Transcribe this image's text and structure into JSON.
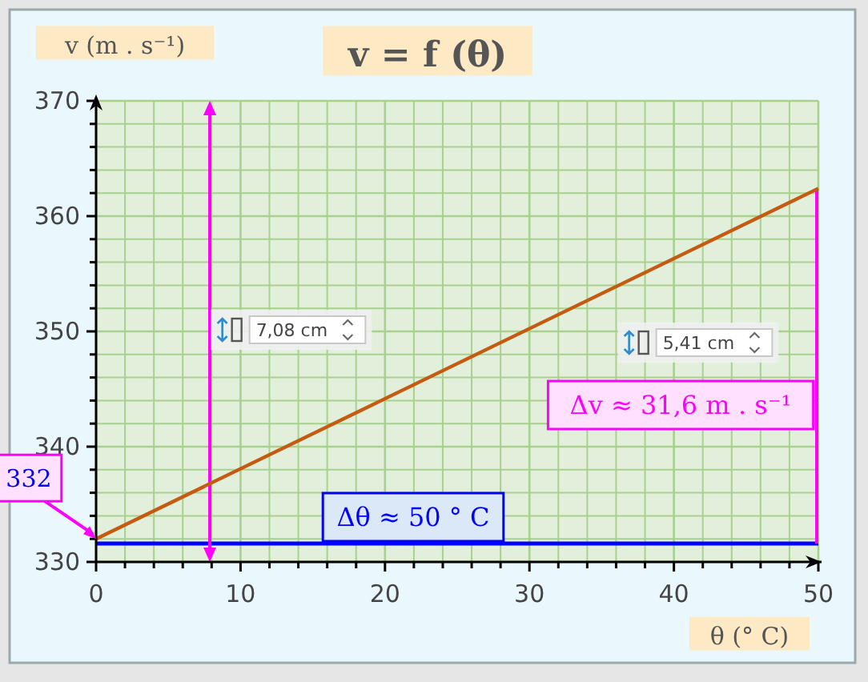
{
  "chart_data": {
    "type": "line",
    "title": "v = f (θ)",
    "xlabel": "θ (° C)",
    "ylabel": "v (m . s⁻¹)",
    "xlim": [
      0,
      50
    ],
    "ylim": [
      330,
      370
    ],
    "xticks": [
      0,
      {
        "value": 2,
        "label": null
      },
      {
        "value": 4,
        "label": null
      },
      {
        "value": 6,
        "label": null
      },
      {
        "value": 8,
        "label": null
      },
      10,
      {
        "value": 12,
        "label": null
      },
      {
        "value": 14,
        "label": null
      },
      {
        "value": 16,
        "label": null
      },
      {
        "value": 18,
        "label": null
      },
      20,
      {
        "value": 22,
        "label": null
      },
      {
        "value": 24,
        "label": null
      },
      {
        "value": 26,
        "label": null
      },
      {
        "value": 28,
        "label": null
      },
      30,
      {
        "value": 32,
        "label": null
      },
      {
        "value": 34,
        "label": null
      },
      {
        "value": 36,
        "label": null
      },
      {
        "value": 38,
        "label": null
      },
      40,
      {
        "value": 42,
        "label": null
      },
      {
        "value": 44,
        "label": null
      },
      {
        "value": 46,
        "label": null
      },
      {
        "value": 48,
        "label": null
      },
      50
    ],
    "yticks": [
      330,
      {
        "value": 332,
        "label": null
      },
      {
        "value": 334,
        "label": null
      },
      {
        "value": 336,
        "label": null
      },
      {
        "value": 338,
        "label": null
      },
      340,
      {
        "value": 342,
        "label": null
      },
      {
        "value": 344,
        "label": null
      },
      {
        "value": 346,
        "label": null
      },
      {
        "value": 348,
        "label": null
      },
      350,
      {
        "value": 352,
        "label": null
      },
      {
        "value": 354,
        "label": null
      },
      {
        "value": 356,
        "label": null
      },
      {
        "value": 358,
        "label": null
      },
      360,
      {
        "value": 362,
        "label": null
      },
      {
        "value": 364,
        "label": null
      },
      {
        "value": 366,
        "label": null
      },
      {
        "value": 368,
        "label": null
      },
      370
    ],
    "grid": true,
    "series": [
      {
        "color": "#c55a11",
        "x": [
          0,
          50
        ],
        "values": [
          332,
          362.4
        ]
      }
    ],
    "ref_lines": [
      {
        "axis": "y",
        "value": 331.6,
        "color": "#0000ff"
      }
    ],
    "annotations": [
      {
        "text": "332",
        "x": 0,
        "y": 332
      },
      "Δθ ≈ 50 ° C",
      "Δv ≈ 31,6 m . s⁻¹",
      "7,08 cm",
      "5,41 cm"
    ]
  }
}
